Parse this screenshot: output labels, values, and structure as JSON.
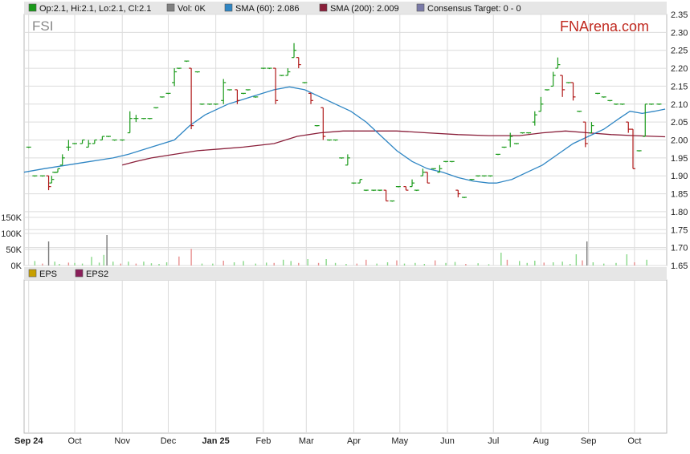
{
  "symbol": "FSI",
  "brand": "FNArena.com",
  "colors": {
    "up": "#1a9a1a",
    "down": "#b01818",
    "sma60": "#2f86c4",
    "sma200": "#8a1f3a",
    "legend_bg": "#e6e6e6",
    "grid": "#dcdcdc",
    "brand": "#c0281e"
  },
  "legend": [
    {
      "label": "Op:2.1, Hi:2.1, Lo:2.1, Cl:2.1",
      "color": "#1a9a1a"
    },
    {
      "label": "Vol: 0K",
      "color": "#808080"
    },
    {
      "label": "SMA (60): 2.086",
      "color": "#2f86c4"
    },
    {
      "label": "SMA (200): 2.009",
      "color": "#8a1f3a"
    },
    {
      "label": "Consensus Target: 0 - 0",
      "color": "#7a7aa8"
    }
  ],
  "eps_legend": [
    {
      "label": "EPS",
      "color": "#c8a000"
    },
    {
      "label": "EPS2",
      "color": "#8a1f5a"
    }
  ],
  "chart_data": {
    "type": "line",
    "price_axis": {
      "range": [
        1.65,
        2.35
      ],
      "ticks": [
        "1.65",
        "1.70",
        "1.75",
        "1.80",
        "1.85",
        "1.90",
        "1.95",
        "2.00",
        "2.05",
        "2.10",
        "2.15",
        "2.20",
        "2.25",
        "2.30",
        "2.35"
      ]
    },
    "volume_axis": {
      "range": [
        0,
        150000
      ],
      "ticks": [
        {
          "v": 0,
          "label": "0K"
        },
        {
          "v": 50000,
          "label": "50K"
        },
        {
          "v": 100000,
          "label": "100K"
        },
        {
          "v": 150000,
          "label": "150K"
        }
      ]
    },
    "x_range": [
      -3,
      416
    ],
    "months": [
      {
        "label": "Sep 24",
        "x": 0,
        "bold": true
      },
      {
        "label": "Oct",
        "x": 30,
        "bold": false
      },
      {
        "label": "Nov",
        "x": 61,
        "bold": false
      },
      {
        "label": "Dec",
        "x": 91,
        "bold": false
      },
      {
        "label": "Jan 25",
        "x": 122,
        "bold": true
      },
      {
        "label": "Feb",
        "x": 153,
        "bold": false
      },
      {
        "label": "Mar",
        "x": 181,
        "bold": false
      },
      {
        "label": "Apr",
        "x": 212,
        "bold": false
      },
      {
        "label": "May",
        "x": 242,
        "bold": false
      },
      {
        "label": "Jun",
        "x": 273,
        "bold": false
      },
      {
        "label": "Jul",
        "x": 303,
        "bold": false
      },
      {
        "label": "Aug",
        "x": 334,
        "bold": false
      },
      {
        "label": "Sep",
        "x": 365,
        "bold": false
      },
      {
        "label": "Oct",
        "x": 395,
        "bold": false
      }
    ],
    "ohlc": [
      [
        0,
        1.98,
        1.98,
        1.98,
        1.98
      ],
      [
        4,
        1.9,
        1.9,
        1.9,
        1.9
      ],
      [
        9,
        1.9,
        1.9,
        1.9,
        1.9
      ],
      [
        13,
        1.9,
        1.9,
        1.86,
        1.87
      ],
      [
        15,
        1.88,
        1.9,
        1.88,
        1.89
      ],
      [
        17,
        1.91,
        1.91,
        1.91,
        1.91
      ],
      [
        19,
        1.91,
        1.92,
        1.91,
        1.92
      ],
      [
        22,
        1.93,
        1.96,
        1.93,
        1.95
      ],
      [
        26,
        1.98,
        2.0,
        1.97,
        1.98
      ],
      [
        30,
        1.99,
        1.99,
        1.99,
        1.99
      ],
      [
        35,
        1.99,
        2.0,
        1.99,
        2.0
      ],
      [
        39,
        1.98,
        2.0,
        1.98,
        1.99
      ],
      [
        43,
        1.99,
        2.0,
        1.99,
        2.0
      ],
      [
        48,
        2.0,
        2.01,
        2.0,
        2.01
      ],
      [
        52,
        2.01,
        2.01,
        2.01,
        2.01
      ],
      [
        56,
        2.0,
        2.0,
        2.0,
        2.0
      ],
      [
        61,
        2.0,
        2.0,
        2.0,
        2.0
      ],
      [
        66,
        2.02,
        2.08,
        2.02,
        2.06
      ],
      [
        70,
        2.06,
        2.07,
        2.05,
        2.06
      ],
      [
        75,
        2.06,
        2.06,
        2.06,
        2.06
      ],
      [
        79,
        2.06,
        2.06,
        2.06,
        2.06
      ],
      [
        83,
        2.09,
        2.09,
        2.09,
        2.09
      ],
      [
        87,
        2.12,
        2.12,
        2.12,
        2.12
      ],
      [
        91,
        2.13,
        2.13,
        2.13,
        2.13
      ],
      [
        95,
        2.16,
        2.2,
        2.15,
        2.19
      ],
      [
        98,
        2.2,
        2.2,
        2.2,
        2.2
      ],
      [
        103,
        2.22,
        2.22,
        2.22,
        2.22
      ],
      [
        106,
        2.2,
        2.2,
        2.03,
        2.04
      ],
      [
        110,
        2.19,
        2.19,
        2.19,
        2.19
      ],
      [
        113,
        2.1,
        2.1,
        2.1,
        2.1
      ],
      [
        118,
        2.1,
        2.1,
        2.1,
        2.1
      ],
      [
        122,
        2.1,
        2.1,
        2.1,
        2.1
      ],
      [
        127,
        2.11,
        2.17,
        2.1,
        2.16
      ],
      [
        131,
        2.14,
        2.14,
        2.14,
        2.14
      ],
      [
        136,
        2.14,
        2.14,
        2.1,
        2.11
      ],
      [
        140,
        2.13,
        2.13,
        2.13,
        2.13
      ],
      [
        143,
        2.14,
        2.14,
        2.14,
        2.14
      ],
      [
        148,
        2.12,
        2.12,
        2.12,
        2.12
      ],
      [
        153,
        2.2,
        2.2,
        2.2,
        2.2
      ],
      [
        157,
        2.2,
        2.2,
        2.2,
        2.2
      ],
      [
        161,
        2.2,
        2.2,
        2.1,
        2.11
      ],
      [
        165,
        2.18,
        2.18,
        2.18,
        2.18
      ],
      [
        169,
        2.18,
        2.2,
        2.18,
        2.19
      ],
      [
        173,
        2.23,
        2.27,
        2.23,
        2.25
      ],
      [
        176,
        2.23,
        2.23,
        2.2,
        2.21
      ],
      [
        180,
        2.16,
        2.16,
        2.16,
        2.16
      ],
      [
        184,
        2.13,
        2.13,
        2.1,
        2.11
      ],
      [
        188,
        2.04,
        2.04,
        2.04,
        2.04
      ],
      [
        192,
        2.09,
        2.09,
        2.0,
        2.01
      ],
      [
        196,
        2.0,
        2.0,
        2.0,
        2.0
      ],
      [
        200,
        2.0,
        2.0,
        2.0,
        2.0
      ],
      [
        204,
        1.95,
        1.95,
        1.95,
        1.95
      ],
      [
        208,
        1.93,
        1.96,
        1.93,
        1.95
      ],
      [
        212,
        1.88,
        1.88,
        1.88,
        1.88
      ],
      [
        216,
        1.88,
        1.89,
        1.88,
        1.89
      ],
      [
        220,
        1.86,
        1.86,
        1.86,
        1.86
      ],
      [
        225,
        1.86,
        1.86,
        1.86,
        1.86
      ],
      [
        229,
        1.86,
        1.86,
        1.86,
        1.86
      ],
      [
        233,
        1.86,
        1.86,
        1.83,
        1.83
      ],
      [
        237,
        1.83,
        1.83,
        1.83,
        1.83
      ],
      [
        241,
        1.87,
        1.87,
        1.87,
        1.87
      ],
      [
        246,
        1.87,
        1.87,
        1.86,
        1.86
      ],
      [
        250,
        1.87,
        1.89,
        1.87,
        1.88
      ],
      [
        253,
        1.86,
        1.86,
        1.86,
        1.86
      ],
      [
        257,
        1.9,
        1.92,
        1.9,
        1.91
      ],
      [
        260,
        1.91,
        1.91,
        1.88,
        1.88
      ],
      [
        264,
        1.92,
        1.92,
        1.92,
        1.92
      ],
      [
        268,
        1.91,
        1.93,
        1.91,
        1.92
      ],
      [
        272,
        1.94,
        1.94,
        1.94,
        1.94
      ],
      [
        276,
        1.94,
        1.94,
        1.94,
        1.94
      ],
      [
        280,
        1.86,
        1.86,
        1.84,
        1.85
      ],
      [
        284,
        1.84,
        1.84,
        1.84,
        1.84
      ],
      [
        289,
        1.89,
        1.89,
        1.89,
        1.89
      ],
      [
        293,
        1.9,
        1.9,
        1.9,
        1.9
      ],
      [
        297,
        1.9,
        1.9,
        1.9,
        1.9
      ],
      [
        301,
        1.9,
        1.9,
        1.9,
        1.9
      ],
      [
        306,
        1.96,
        1.96,
        1.96,
        1.96
      ],
      [
        310,
        1.98,
        1.98,
        1.98,
        1.98
      ],
      [
        314,
        2.0,
        2.02,
        1.98,
        2.01
      ],
      [
        318,
        1.99,
        1.99,
        1.99,
        1.99
      ],
      [
        322,
        2.02,
        2.02,
        2.02,
        2.02
      ],
      [
        326,
        2.02,
        2.02,
        2.02,
        2.02
      ],
      [
        330,
        2.05,
        2.08,
        2.04,
        2.07
      ],
      [
        334,
        2.08,
        2.12,
        2.08,
        2.1
      ],
      [
        338,
        2.14,
        2.14,
        2.14,
        2.14
      ],
      [
        342,
        2.15,
        2.19,
        2.15,
        2.18
      ],
      [
        345,
        2.2,
        2.23,
        2.2,
        2.21
      ],
      [
        348,
        2.18,
        2.18,
        2.12,
        2.14
      ],
      [
        352,
        2.16,
        2.16,
        2.16,
        2.16
      ],
      [
        355,
        2.16,
        2.16,
        2.11,
        2.12
      ],
      [
        359,
        2.08,
        2.08,
        2.08,
        2.08
      ],
      [
        363,
        2.05,
        2.05,
        1.98,
        1.99
      ],
      [
        367,
        2.02,
        2.05,
        2.02,
        2.04
      ],
      [
        371,
        2.13,
        2.13,
        2.13,
        2.13
      ],
      [
        375,
        2.12,
        2.12,
        2.12,
        2.12
      ],
      [
        379,
        2.11,
        2.11,
        2.11,
        2.11
      ],
      [
        383,
        2.1,
        2.1,
        2.1,
        2.1
      ],
      [
        387,
        2.1,
        2.1,
        2.1,
        2.1
      ],
      [
        391,
        2.05,
        2.05,
        2.02,
        2.03
      ],
      [
        394,
        2.03,
        2.03,
        1.92,
        1.92
      ],
      [
        398,
        1.97,
        1.97,
        1.97,
        1.97
      ],
      [
        402,
        2.01,
        2.1,
        2.01,
        2.1
      ],
      [
        406,
        2.1,
        2.1,
        2.1,
        2.1
      ],
      [
        411,
        2.1,
        2.1,
        2.1,
        2.1
      ]
    ],
    "sma60": [
      [
        -3,
        1.91
      ],
      [
        10,
        1.92
      ],
      [
        25,
        1.93
      ],
      [
        40,
        1.94
      ],
      [
        55,
        1.95
      ],
      [
        65,
        1.96
      ],
      [
        80,
        1.98
      ],
      [
        95,
        2.0
      ],
      [
        105,
        2.04
      ],
      [
        115,
        2.07
      ],
      [
        130,
        2.1
      ],
      [
        145,
        2.12
      ],
      [
        160,
        2.14
      ],
      [
        170,
        2.148
      ],
      [
        180,
        2.14
      ],
      [
        190,
        2.12
      ],
      [
        200,
        2.1
      ],
      [
        210,
        2.08
      ],
      [
        220,
        2.05
      ],
      [
        230,
        2.01
      ],
      [
        240,
        1.97
      ],
      [
        250,
        1.94
      ],
      [
        260,
        1.92
      ],
      [
        270,
        1.91
      ],
      [
        280,
        1.895
      ],
      [
        290,
        1.885
      ],
      [
        300,
        1.88
      ],
      [
        305,
        1.88
      ],
      [
        315,
        1.89
      ],
      [
        325,
        1.91
      ],
      [
        335,
        1.93
      ],
      [
        345,
        1.96
      ],
      [
        355,
        1.99
      ],
      [
        365,
        2.01
      ],
      [
        375,
        2.03
      ],
      [
        385,
        2.06
      ],
      [
        392,
        2.08
      ],
      [
        400,
        2.074
      ],
      [
        408,
        2.08
      ],
      [
        415,
        2.086
      ]
    ],
    "sma200": [
      [
        61,
        1.93
      ],
      [
        70,
        1.94
      ],
      [
        80,
        1.95
      ],
      [
        95,
        1.96
      ],
      [
        110,
        1.97
      ],
      [
        125,
        1.975
      ],
      [
        140,
        1.98
      ],
      [
        160,
        1.99
      ],
      [
        175,
        2.01
      ],
      [
        190,
        2.02
      ],
      [
        205,
        2.025
      ],
      [
        220,
        2.025
      ],
      [
        240,
        2.025
      ],
      [
        260,
        2.02
      ],
      [
        280,
        2.015
      ],
      [
        300,
        2.012
      ],
      [
        320,
        2.012
      ],
      [
        335,
        2.02
      ],
      [
        350,
        2.025
      ],
      [
        365,
        2.02
      ],
      [
        380,
        2.015
      ],
      [
        395,
        2.012
      ],
      [
        415,
        2.009
      ]
    ],
    "volume": [
      [
        4,
        14000,
        1
      ],
      [
        9,
        6000,
        0
      ],
      [
        13,
        75000,
        1
      ],
      [
        17,
        12000,
        1
      ],
      [
        20,
        5000,
        1
      ],
      [
        26,
        9000,
        0
      ],
      [
        30,
        8000,
        1
      ],
      [
        35,
        6000,
        1
      ],
      [
        41,
        27000,
        1
      ],
      [
        46,
        9000,
        1
      ],
      [
        49,
        33000,
        1
      ],
      [
        51,
        95000,
        1
      ],
      [
        55,
        12000,
        1
      ],
      [
        60,
        6000,
        0
      ],
      [
        65,
        12000,
        1
      ],
      [
        70,
        6000,
        0
      ],
      [
        75,
        12000,
        1
      ],
      [
        80,
        7000,
        1
      ],
      [
        85,
        5000,
        1
      ],
      [
        90,
        10000,
        1
      ],
      [
        98,
        28000,
        0
      ],
      [
        106,
        52000,
        0
      ],
      [
        113,
        6000,
        1
      ],
      [
        120,
        6000,
        1
      ],
      [
        127,
        15000,
        0
      ],
      [
        134,
        10000,
        1
      ],
      [
        140,
        14000,
        1
      ],
      [
        148,
        6000,
        1
      ],
      [
        155,
        9000,
        1
      ],
      [
        160,
        8000,
        0
      ],
      [
        166,
        18000,
        1
      ],
      [
        171,
        14000,
        1
      ],
      [
        176,
        8000,
        0
      ],
      [
        182,
        20000,
        1
      ],
      [
        189,
        8000,
        0
      ],
      [
        194,
        20000,
        1
      ],
      [
        200,
        8000,
        1
      ],
      [
        207,
        5000,
        1
      ],
      [
        214,
        6000,
        0
      ],
      [
        220,
        18000,
        0
      ],
      [
        227,
        6000,
        1
      ],
      [
        234,
        10000,
        1
      ],
      [
        240,
        16000,
        0
      ],
      [
        245,
        6000,
        1
      ],
      [
        252,
        8000,
        1
      ],
      [
        258,
        5000,
        1
      ],
      [
        265,
        16000,
        0
      ],
      [
        272,
        8000,
        1
      ],
      [
        278,
        11000,
        1
      ],
      [
        285,
        5000,
        0
      ],
      [
        293,
        7000,
        1
      ],
      [
        300,
        4000,
        1
      ],
      [
        308,
        40000,
        1
      ],
      [
        312,
        18000,
        0
      ],
      [
        320,
        14000,
        1
      ],
      [
        325,
        8000,
        1
      ],
      [
        330,
        15000,
        1
      ],
      [
        336,
        9000,
        0
      ],
      [
        342,
        10000,
        1
      ],
      [
        348,
        12000,
        1
      ],
      [
        353,
        5000,
        1
      ],
      [
        357,
        35000,
        1
      ],
      [
        361,
        16000,
        0
      ],
      [
        364,
        75000,
        1
      ],
      [
        368,
        10000,
        1
      ],
      [
        375,
        6000,
        1
      ],
      [
        383,
        8000,
        1
      ],
      [
        390,
        35000,
        1
      ],
      [
        395,
        10000,
        0
      ],
      [
        403,
        18000,
        1
      ]
    ]
  }
}
